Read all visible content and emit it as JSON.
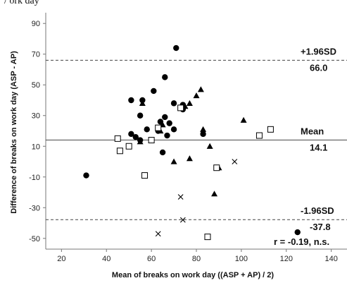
{
  "header": {
    "top_text": "/ ork day"
  },
  "chart_data": {
    "type": "scatter",
    "title": "",
    "xlabel": "Mean of breaks on work day ((ASP + AP) / 2)",
    "ylabel": "Difference of breaks on work day (ASP - AP)",
    "xlim": [
      13,
      147
    ],
    "ylim": [
      -57,
      97
    ],
    "x_ticks": [
      20,
      40,
      60,
      80,
      100,
      120,
      140
    ],
    "y_ticks": [
      -50,
      -30,
      -10,
      10,
      30,
      50,
      70,
      90
    ],
    "grid": false,
    "reference_lines": [
      {
        "y": 66.0,
        "style": "dashed",
        "label": "+1.96SD",
        "value_label": "66.0"
      },
      {
        "y": 14.1,
        "style": "solid",
        "label": "Mean",
        "value_label": "14.1"
      },
      {
        "y": -37.8,
        "style": "dashed",
        "label": "-1.96SD",
        "value_label": "-37.8"
      }
    ],
    "annotation": "r = -0.19,  n.s.",
    "series": [
      {
        "marker": "filled-circle",
        "color": "#000000",
        "points": [
          [
            31,
            -9
          ],
          [
            51,
            40
          ],
          [
            51,
            18
          ],
          [
            53,
            16
          ],
          [
            55,
            30
          ],
          [
            56,
            40
          ],
          [
            55,
            14
          ],
          [
            58,
            21
          ],
          [
            61,
            46
          ],
          [
            63,
            20
          ],
          [
            64,
            26
          ],
          [
            65,
            6
          ],
          [
            66,
            55
          ],
          [
            66,
            29
          ],
          [
            67,
            17
          ],
          [
            68,
            25
          ],
          [
            70,
            38
          ],
          [
            70,
            21
          ],
          [
            71,
            74
          ],
          [
            74,
            34
          ],
          [
            74,
            37
          ],
          [
            83,
            18
          ],
          [
            125,
            -46
          ]
        ]
      },
      {
        "marker": "filled-triangle",
        "color": "#000000",
        "points": [
          [
            55,
            13
          ],
          [
            56,
            38
          ],
          [
            64,
            20
          ],
          [
            65,
            24
          ],
          [
            70,
            0
          ],
          [
            73,
            35
          ],
          [
            75,
            36
          ],
          [
            77,
            38
          ],
          [
            77,
            2
          ],
          [
            80,
            43
          ],
          [
            82,
            47
          ],
          [
            83,
            21
          ],
          [
            86,
            10
          ],
          [
            88,
            -21
          ],
          [
            90,
            -4
          ],
          [
            101,
            27
          ]
        ]
      },
      {
        "marker": "open-square",
        "color": "#000000",
        "points": [
          [
            45,
            15
          ],
          [
            46,
            7
          ],
          [
            50,
            10
          ],
          [
            57,
            -9
          ],
          [
            60,
            14
          ],
          [
            63,
            22
          ],
          [
            73,
            35
          ],
          [
            85,
            -49
          ],
          [
            89,
            -4
          ],
          [
            108,
            17
          ],
          [
            113,
            21
          ]
        ]
      },
      {
        "marker": "x-cross",
        "color": "#000000",
        "points": [
          [
            63,
            -47
          ],
          [
            73,
            -23
          ],
          [
            74,
            -38
          ],
          [
            97,
            0
          ]
        ]
      }
    ]
  }
}
